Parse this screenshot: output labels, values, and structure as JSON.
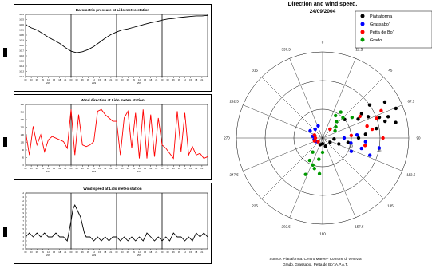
{
  "chart_data": [
    {
      "type": "line",
      "title": "Barometric pressure at Lido meteo station",
      "ylim": [
        1012,
        1024
      ],
      "y_ticks": [
        "1024",
        "1023",
        "1022",
        "1021",
        "1020",
        "1019",
        "1018",
        "1017",
        "1016",
        "1015",
        "1014",
        "1013",
        "1012"
      ],
      "x_ticks": [
        "00",
        "03",
        "06",
        "09",
        "12",
        "15",
        "18",
        "21",
        "00",
        "03",
        "06",
        "09",
        "12",
        "15",
        "18",
        "21",
        "00",
        "03",
        "06",
        "09",
        "12",
        "15",
        "18",
        "21",
        "00",
        "03",
        "06",
        "09",
        "12",
        "15",
        "18",
        "21"
      ],
      "x_days": [
        "23/9",
        "24/9",
        "25/9"
      ],
      "x_hours": [
        0,
        3,
        6,
        9,
        12,
        15,
        18,
        21,
        24,
        27,
        30,
        33,
        36,
        39,
        42,
        45,
        48,
        51,
        54,
        57,
        60,
        63,
        66,
        69,
        72,
        75,
        78,
        81,
        84,
        87,
        90,
        93
      ],
      "series": [
        {
          "color": "#000000",
          "x": [
            0,
            3,
            6,
            9,
            12,
            15,
            18,
            21,
            24,
            27,
            30,
            33,
            36,
            39,
            42,
            45,
            48,
            51,
            54,
            57,
            60,
            63,
            66,
            69,
            72,
            75,
            78,
            81,
            84,
            87,
            90,
            93,
            96
          ],
          "y": [
            1022.0,
            1021.4,
            1021.0,
            1020.3,
            1019.6,
            1019.0,
            1018.4,
            1017.6,
            1016.9,
            1016.6,
            1016.8,
            1017.2,
            1017.8,
            1018.6,
            1019.4,
            1020.1,
            1020.6,
            1021.0,
            1021.2,
            1021.5,
            1021.8,
            1022.1,
            1022.4,
            1022.6,
            1022.9,
            1023.1,
            1023.2,
            1023.4,
            1023.5,
            1023.6,
            1023.7,
            1023.7,
            1023.8
          ]
        }
      ]
    },
    {
      "type": "line",
      "title": "Wind direction at Lido meteo station",
      "ylim": [
        0,
        360
      ],
      "y_ticks": [
        "360",
        "315",
        "270",
        "225",
        "180",
        "135",
        "90",
        "45",
        "0"
      ],
      "x_ticks": [
        "00",
        "03",
        "06",
        "09",
        "12",
        "15",
        "18",
        "21",
        "00",
        "03",
        "06",
        "09",
        "12",
        "15",
        "18",
        "21",
        "00",
        "03",
        "06",
        "09",
        "12",
        "15",
        "18",
        "21",
        "00",
        "03",
        "06",
        "09",
        "12",
        "15",
        "18",
        "21"
      ],
      "x_days": [
        "23/9",
        "24/9",
        "25/9"
      ],
      "x_hours": [
        0,
        3,
        6,
        9,
        12,
        15,
        18,
        21,
        24,
        27,
        30,
        33,
        36,
        39,
        42,
        45,
        48,
        51,
        54,
        57,
        60,
        63,
        66,
        69,
        72,
        75,
        78,
        81,
        84,
        87,
        90,
        93
      ],
      "series": [
        {
          "color": "#ff0000",
          "x": [
            0,
            2,
            4,
            6,
            8,
            10,
            12,
            14,
            16,
            18,
            20,
            22,
            24,
            26,
            28,
            30,
            32,
            34,
            36,
            38,
            40,
            42,
            44,
            46,
            48,
            50,
            52,
            54,
            56,
            58,
            60,
            62,
            64,
            66,
            68,
            70,
            72,
            74,
            76,
            78,
            80,
            82,
            84,
            86,
            88,
            90,
            92,
            94,
            96
          ],
          "y": [
            200,
            60,
            230,
            120,
            180,
            80,
            150,
            170,
            160,
            150,
            140,
            100,
            330,
            60,
            300,
            120,
            110,
            120,
            140,
            320,
            330,
            300,
            280,
            260,
            260,
            60,
            280,
            320,
            100,
            310,
            40,
            330,
            40,
            300,
            50,
            280,
            120,
            100,
            70,
            40,
            320,
            80,
            310,
            60,
            110,
            60,
            70,
            40,
            50
          ]
        }
      ]
    },
    {
      "type": "line",
      "title": "Wind speed at Lido meteo station",
      "ylim": [
        0,
        14
      ],
      "y_ticks": [
        "14",
        "13",
        "12",
        "11",
        "10",
        "9",
        "8",
        "7",
        "6",
        "5",
        "4",
        "3",
        "2",
        "1",
        "0"
      ],
      "x_ticks": [
        "00",
        "03",
        "06",
        "09",
        "12",
        "15",
        "18",
        "21",
        "00",
        "03",
        "06",
        "09",
        "12",
        "15",
        "18",
        "21",
        "00",
        "03",
        "06",
        "09",
        "12",
        "15",
        "18",
        "21",
        "00",
        "03",
        "06",
        "09",
        "12",
        "15",
        "18",
        "21"
      ],
      "x_days": [
        "23/9",
        "24/9",
        "25/9"
      ],
      "x_hours": [
        0,
        3,
        6,
        9,
        12,
        15,
        18,
        21,
        24,
        27,
        30,
        33,
        36,
        39,
        42,
        45,
        48,
        51,
        54,
        57,
        60,
        63,
        66,
        69,
        72,
        75,
        78,
        81,
        84,
        87,
        90,
        93
      ],
      "series": [
        {
          "color": "#000000",
          "x": [
            0,
            2,
            4,
            6,
            8,
            10,
            12,
            14,
            16,
            18,
            20,
            22,
            24,
            25,
            26,
            27,
            28,
            29,
            30,
            31,
            32,
            34,
            36,
            38,
            40,
            42,
            44,
            46,
            48,
            50,
            52,
            54,
            56,
            58,
            60,
            62,
            64,
            66,
            68,
            70,
            72,
            74,
            76,
            78,
            80,
            82,
            84,
            86,
            88,
            90,
            92,
            94,
            96
          ],
          "y": [
            3,
            4,
            3,
            4,
            3,
            4,
            3,
            3,
            4,
            3,
            3,
            2,
            7,
            10,
            11,
            10,
            9,
            8,
            6,
            4,
            3,
            3,
            2,
            3,
            2,
            3,
            2,
            3,
            3,
            2,
            3,
            2,
            3,
            2,
            3,
            2,
            4,
            3,
            2,
            3,
            2,
            3,
            2,
            4,
            3,
            3,
            2,
            3,
            2,
            4,
            3,
            4,
            3
          ]
        }
      ]
    },
    {
      "type": "scatter",
      "subtype": "polar",
      "title": "Direction and wind speed.",
      "subtitle": "24/09/2004",
      "angle_labels": [
        "0",
        "22.5",
        "45",
        "67.5",
        "90",
        "112.5",
        "135",
        "157.5",
        "180",
        "202.5",
        "225",
        "247.5",
        "270",
        "292.5",
        "315",
        "337.5"
      ],
      "radial_ticks": [
        "20",
        "40"
      ],
      "rmax": 60,
      "legend_position": "top-right",
      "series": [
        {
          "name": "Piattaforma",
          "color": "#000000",
          "points": [
            [
              75,
              45
            ],
            [
              70,
              42
            ],
            [
              60,
              50
            ],
            [
              80,
              38
            ],
            [
              65,
              35
            ],
            [
              55,
              40
            ],
            [
              85,
              30
            ],
            [
              72,
              48
            ],
            [
              68,
              55
            ],
            [
              58,
              32
            ],
            [
              90,
              25
            ],
            [
              78,
              52
            ],
            [
              62,
              28
            ],
            [
              50,
              20
            ],
            [
              100,
              18
            ],
            [
              110,
              12
            ],
            [
              95,
              8
            ],
            [
              120,
              6
            ],
            [
              200,
              5
            ],
            [
              180,
              4
            ],
            [
              160,
              6
            ]
          ]
        },
        {
          "name": "Grassabo'",
          "color": "#0000ff",
          "points": [
            [
              100,
              20
            ],
            [
              95,
              30
            ],
            [
              105,
              28
            ],
            [
              110,
              35
            ],
            [
              90,
              15
            ],
            [
              300,
              10
            ],
            [
              320,
              8
            ],
            [
              340,
              9
            ],
            [
              280,
              7
            ],
            [
              260,
              6
            ],
            [
              240,
              5
            ],
            [
              85,
              24
            ],
            [
              115,
              22
            ],
            [
              100,
              40
            ]
          ]
        },
        {
          "name": "Petta de Bo'",
          "color": "#ff0000",
          "points": [
            [
              80,
              35
            ],
            [
              75,
              32
            ],
            [
              70,
              40
            ],
            [
              65,
              45
            ],
            [
              85,
              20
            ],
            [
              60,
              30
            ],
            [
              270,
              5
            ],
            [
              250,
              6
            ],
            [
              230,
              4
            ],
            [
              290,
              6
            ],
            [
              40,
              8
            ],
            [
              100,
              30
            ],
            [
              90,
              42
            ]
          ]
        },
        {
          "name": "Grado",
          "color": "#009900",
          "points": [
            [
              190,
              15
            ],
            [
              200,
              20
            ],
            [
              210,
              18
            ],
            [
              185,
              25
            ],
            [
              195,
              22
            ],
            [
              205,
              28
            ],
            [
              215,
              12
            ],
            [
              180,
              10
            ],
            [
              40,
              15
            ],
            [
              50,
              12
            ],
            [
              30,
              18
            ],
            [
              60,
              10
            ],
            [
              45,
              20
            ],
            [
              35,
              22
            ],
            [
              55,
              25
            ]
          ]
        }
      ],
      "source": "Source: Piattaforma: Centro Maree - Comune di Venezia",
      "source2": "Grado, Grassabo', Petta de Bo': A.P.A.T."
    }
  ]
}
